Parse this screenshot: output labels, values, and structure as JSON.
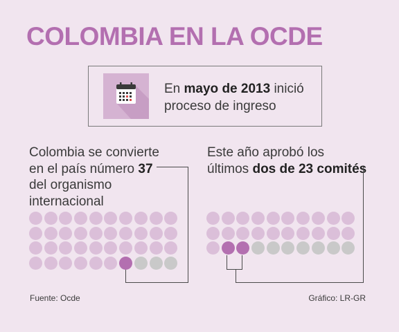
{
  "title": "COLOMBIA EN LA OCDE",
  "info": {
    "icon": "calendar-icon",
    "pre": "En ",
    "highlight": "mayo de 2013",
    "post": " inició",
    "line2": "proceso de ingreso"
  },
  "left": {
    "line1": "Colombia se convierte",
    "line2_pre": "en el país número ",
    "line2_bold": "37",
    "line3": "del organismo",
    "line4": "internacional",
    "dots_total": 40,
    "dots_highlighted": 37,
    "highlight_index": 36
  },
  "right": {
    "line1": "Este año aprobó los",
    "line2_pre": "últimos ",
    "line2_bold": "dos de 23 comités",
    "dots_total": 30,
    "dots_highlighted": 23,
    "highlight_indices": [
      21,
      22
    ]
  },
  "footer": {
    "source": "Fuente: Ocde",
    "credit": "Gráfico: LR-GR"
  },
  "colors": {
    "accent": "#b36fb0",
    "dot_light": "#dbbfd9",
    "dot_gray": "#c9c9c9",
    "background": "#f1e5ef"
  }
}
